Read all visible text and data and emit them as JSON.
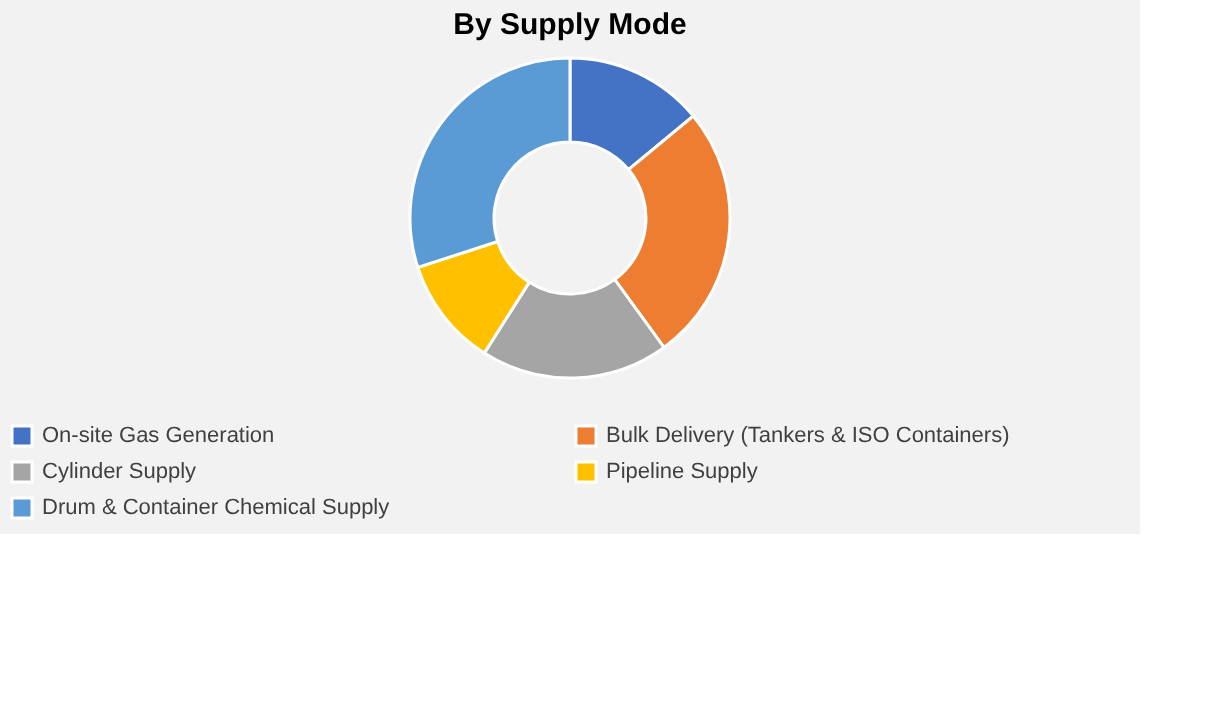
{
  "chart_data": {
    "type": "donut",
    "title": "By Supply Mode",
    "categories": [
      "On-site Gas Generation",
      "Bulk Delivery (Tankers & ISO Containers)",
      "Cylinder Supply",
      "Pipeline Supply",
      "Drum & Container Chemical Supply"
    ],
    "values": [
      14,
      26,
      19,
      11,
      30
    ],
    "colors": [
      "#4472c4",
      "#ed7d31",
      "#a5a5a5",
      "#ffc000",
      "#5b9bd5"
    ],
    "legend": "bottom"
  }
}
